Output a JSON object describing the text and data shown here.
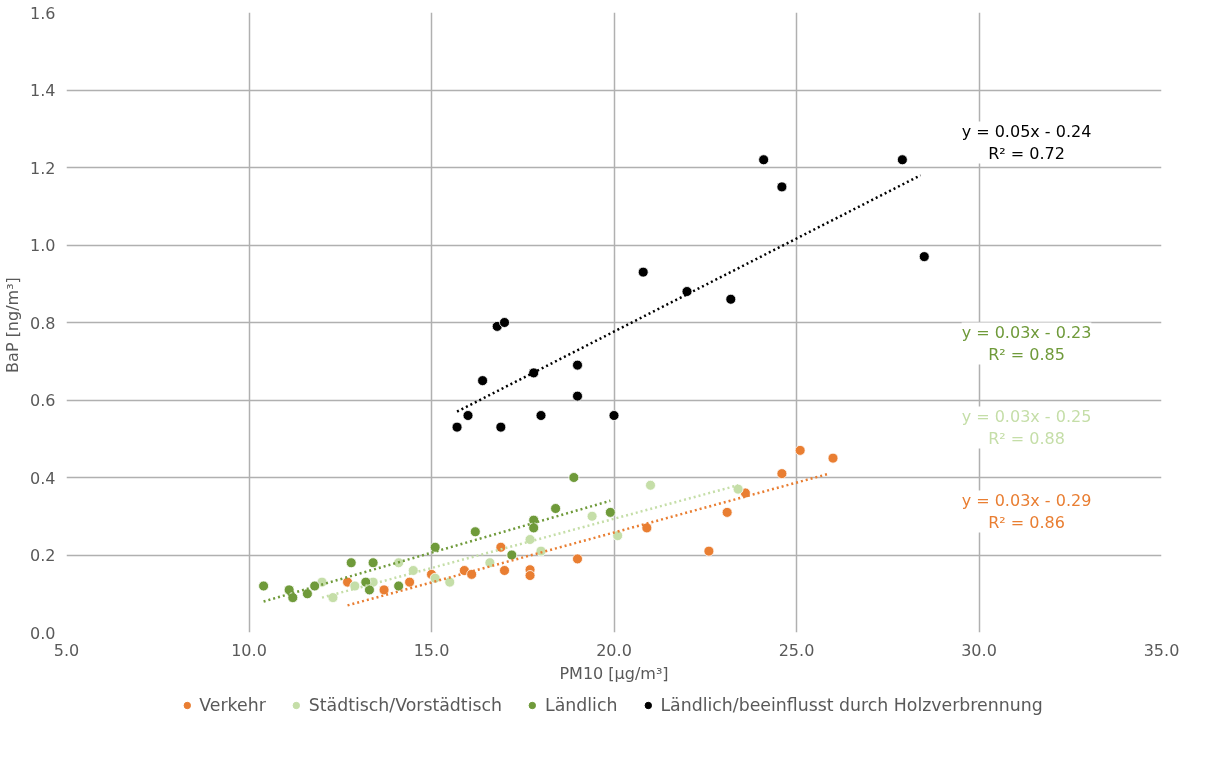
{
  "chart_data": {
    "type": "scatter",
    "xlabel": "PM10 [µg/m³]",
    "ylabel": "BaP  [ng/m³]",
    "xlim": [
      5,
      35
    ],
    "ylim": [
      0,
      1.6
    ],
    "xticks": [
      {
        "value": 5,
        "label": "5.0"
      },
      {
        "value": 10,
        "label": "10.0"
      },
      {
        "value": 15,
        "label": "15.0"
      },
      {
        "value": 20,
        "label": "20.0"
      },
      {
        "value": 25,
        "label": "25.0"
      },
      {
        "value": 30,
        "label": "30.0"
      },
      {
        "value": 35,
        "label": "35.0"
      }
    ],
    "yticks": [
      {
        "value": 0,
        "label": "0.0"
      },
      {
        "value": 0.2,
        "label": "0.2"
      },
      {
        "value": 0.4,
        "label": "0.4"
      },
      {
        "value": 0.6,
        "label": "0.6"
      },
      {
        "value": 0.8,
        "label": "0.8"
      },
      {
        "value": 1.0,
        "label": "1.0"
      },
      {
        "value": 1.2,
        "label": "1.2"
      },
      {
        "value": 1.4,
        "label": "1.4"
      },
      {
        "value": 1.6,
        "label": "1.6"
      }
    ],
    "grid": true,
    "legend": "bottom",
    "marker": "circle",
    "series": [
      {
        "name": "Verkehr",
        "color": "#e97e32",
        "x": [
          12.7,
          13.7,
          14.4,
          15.0,
          15.9,
          16.1,
          16.9,
          17.0,
          17.7,
          17.7,
          19.0,
          20.9,
          22.6,
          23.1,
          23.6,
          24.6,
          25.1,
          26.0
        ],
        "values": [
          0.13,
          0.11,
          0.13,
          0.15,
          0.16,
          0.15,
          0.22,
          0.16,
          0.162,
          0.147,
          0.19,
          0.27,
          0.21,
          0.31,
          0.36,
          0.41,
          0.47,
          0.45
        ]
      },
      {
        "name": "Städtisch/Vorstädtisch",
        "color": "#c5dea8",
        "x": [
          12.0,
          12.3,
          12.9,
          13.4,
          14.1,
          14.5,
          15.1,
          15.5,
          16.6,
          17.7,
          18.0,
          19.4,
          20.1,
          21.0,
          23.4
        ],
        "values": [
          0.13,
          0.09,
          0.12,
          0.13,
          0.18,
          0.16,
          0.14,
          0.13,
          0.18,
          0.24,
          0.21,
          0.3,
          0.25,
          0.38,
          0.37
        ]
      },
      {
        "name": "Ländlich",
        "color": "#6f9a3a",
        "x": [
          10.4,
          11.1,
          11.2,
          11.6,
          11.8,
          12.8,
          13.4,
          13.2,
          13.3,
          14.1,
          15.1,
          16.2,
          17.2,
          17.8,
          17.8,
          18.4,
          18.9,
          19.9
        ],
        "values": [
          0.12,
          0.11,
          0.09,
          0.1,
          0.12,
          0.18,
          0.18,
          0.13,
          0.11,
          0.12,
          0.22,
          0.26,
          0.2,
          0.29,
          0.27,
          0.32,
          0.4,
          0.31
        ]
      },
      {
        "name": "Ländlich/beeinflusst durch Holzverbrennung",
        "color": "#000000",
        "x": [
          15.7,
          16.0,
          16.4,
          16.8,
          17.0,
          16.9,
          17.8,
          18.0,
          19.0,
          19.0,
          20.0,
          20.8,
          22.0,
          23.2,
          24.1,
          24.6,
          27.9,
          28.5
        ],
        "values": [
          0.53,
          0.56,
          0.65,
          0.79,
          0.8,
          0.53,
          0.67,
          0.56,
          0.69,
          0.61,
          0.56,
          0.93,
          0.88,
          0.86,
          1.22,
          1.15,
          1.22,
          0.97
        ]
      },
      {
        "color": "#000000",
        "type": "line",
        "marker": "none",
        "line_style": "dotted",
        "x": [
          15.7,
          28.4
        ],
        "values": [
          0.57,
          1.18
        ]
      },
      {
        "color": "#6f9a3a",
        "type": "line",
        "marker": "none",
        "line_style": "dotted",
        "x": [
          10.4,
          19.9
        ],
        "values": [
          0.08,
          0.34
        ]
      },
      {
        "color": "#c5dea8",
        "type": "line",
        "marker": "none",
        "line_style": "dotted",
        "x": [
          12.0,
          23.4
        ],
        "values": [
          0.09,
          0.38
        ]
      },
      {
        "color": "#e97e32",
        "type": "line",
        "marker": "none",
        "line_style": "dotted",
        "x": [
          12.7,
          25.9
        ],
        "values": [
          0.07,
          0.41
        ]
      }
    ],
    "annotations": [
      "y = 0.05x - 0.24\nR² = 0.72",
      "y = 0.03x - 0.23\nR² = 0.85",
      "y = 0.03x - 0.25\nR² = 0.88",
      "y = 0.03x - 0.29\nR² = 0.86"
    ]
  }
}
